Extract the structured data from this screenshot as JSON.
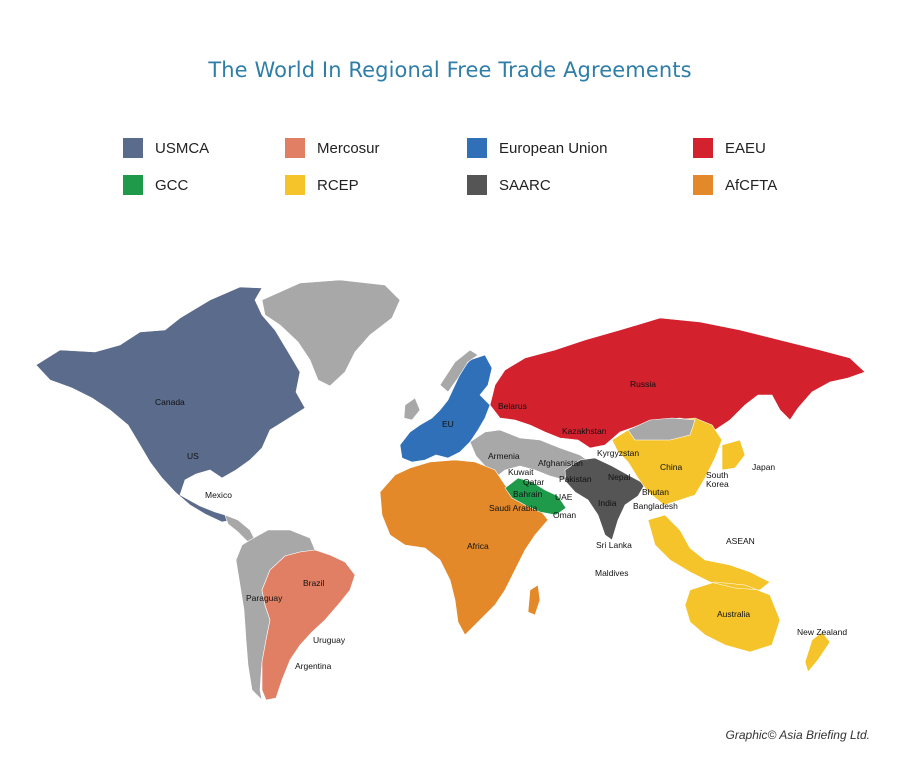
{
  "title": "The World In Regional Free Trade Agreements",
  "legend": [
    {
      "label": "USMCA",
      "color": "#5b6b8c"
    },
    {
      "label": "Mercosur",
      "color": "#e07f64"
    },
    {
      "label": "European Union",
      "color": "#2f70b8"
    },
    {
      "label": "EAEU",
      "color": "#d3212d"
    },
    {
      "label": "GCC",
      "color": "#1f9a4a"
    },
    {
      "label": "RCEP",
      "color": "#f5c42b"
    },
    {
      "label": "SAARC",
      "color": "#555555"
    },
    {
      "label": "AfCFTA",
      "color": "#e3892a"
    }
  ],
  "colors": {
    "unaffiliated": "#a8a8a8",
    "ocean": "#ffffff"
  },
  "regions": {
    "greenland": {
      "name": "",
      "group": "none"
    },
    "north_america": {
      "name": "",
      "group": "USMCA"
    },
    "south_america_other": {
      "name": "",
      "group": "none"
    },
    "mercosur": {
      "name": "",
      "group": "Mercosur"
    },
    "eu": {
      "name": "",
      "group": "European Union"
    },
    "eaeu": {
      "name": "",
      "group": "EAEU"
    },
    "africa": {
      "name": "",
      "group": "AfCFTA"
    },
    "gcc": {
      "name": "",
      "group": "GCC"
    },
    "saarc": {
      "name": "",
      "group": "SAARC"
    },
    "rcep": {
      "name": "",
      "group": "RCEP"
    }
  },
  "labels": {
    "canada": "Canada",
    "us": "US",
    "mexico": "Mexico",
    "brazil": "Brazil",
    "paraguay": "Paraguay",
    "uruguay": "Uruguay",
    "argentina": "Argentina",
    "russia": "Russia",
    "belarus": "Belarus",
    "eu": "EU",
    "kazakhstan": "Kazakhstan",
    "armenia": "Armenia",
    "kyrgyzstan": "Kyrgyzstan",
    "afghanistan": "Afghanistan",
    "kuwait": "Kuwait",
    "qatar": "Qatar",
    "bahrain": "Bahrain",
    "uae": "UAE",
    "saudi_arabia": "Saudi Arabia",
    "oman": "Oman",
    "pakistan": "Pakistan",
    "nepal": "Nepal",
    "bhutan": "Bhutan",
    "bangladesh": "Bangladesh",
    "india": "India",
    "sri_lanka": "Sri Lanka",
    "maldives": "Maldives",
    "china": "China",
    "south_korea": "South\nKorea",
    "japan": "Japan",
    "asean": "ASEAN",
    "australia": "Australia",
    "new_zealand": "New Zealand",
    "africa": "Africa"
  },
  "credit": "Graphic© Asia Briefing Ltd."
}
